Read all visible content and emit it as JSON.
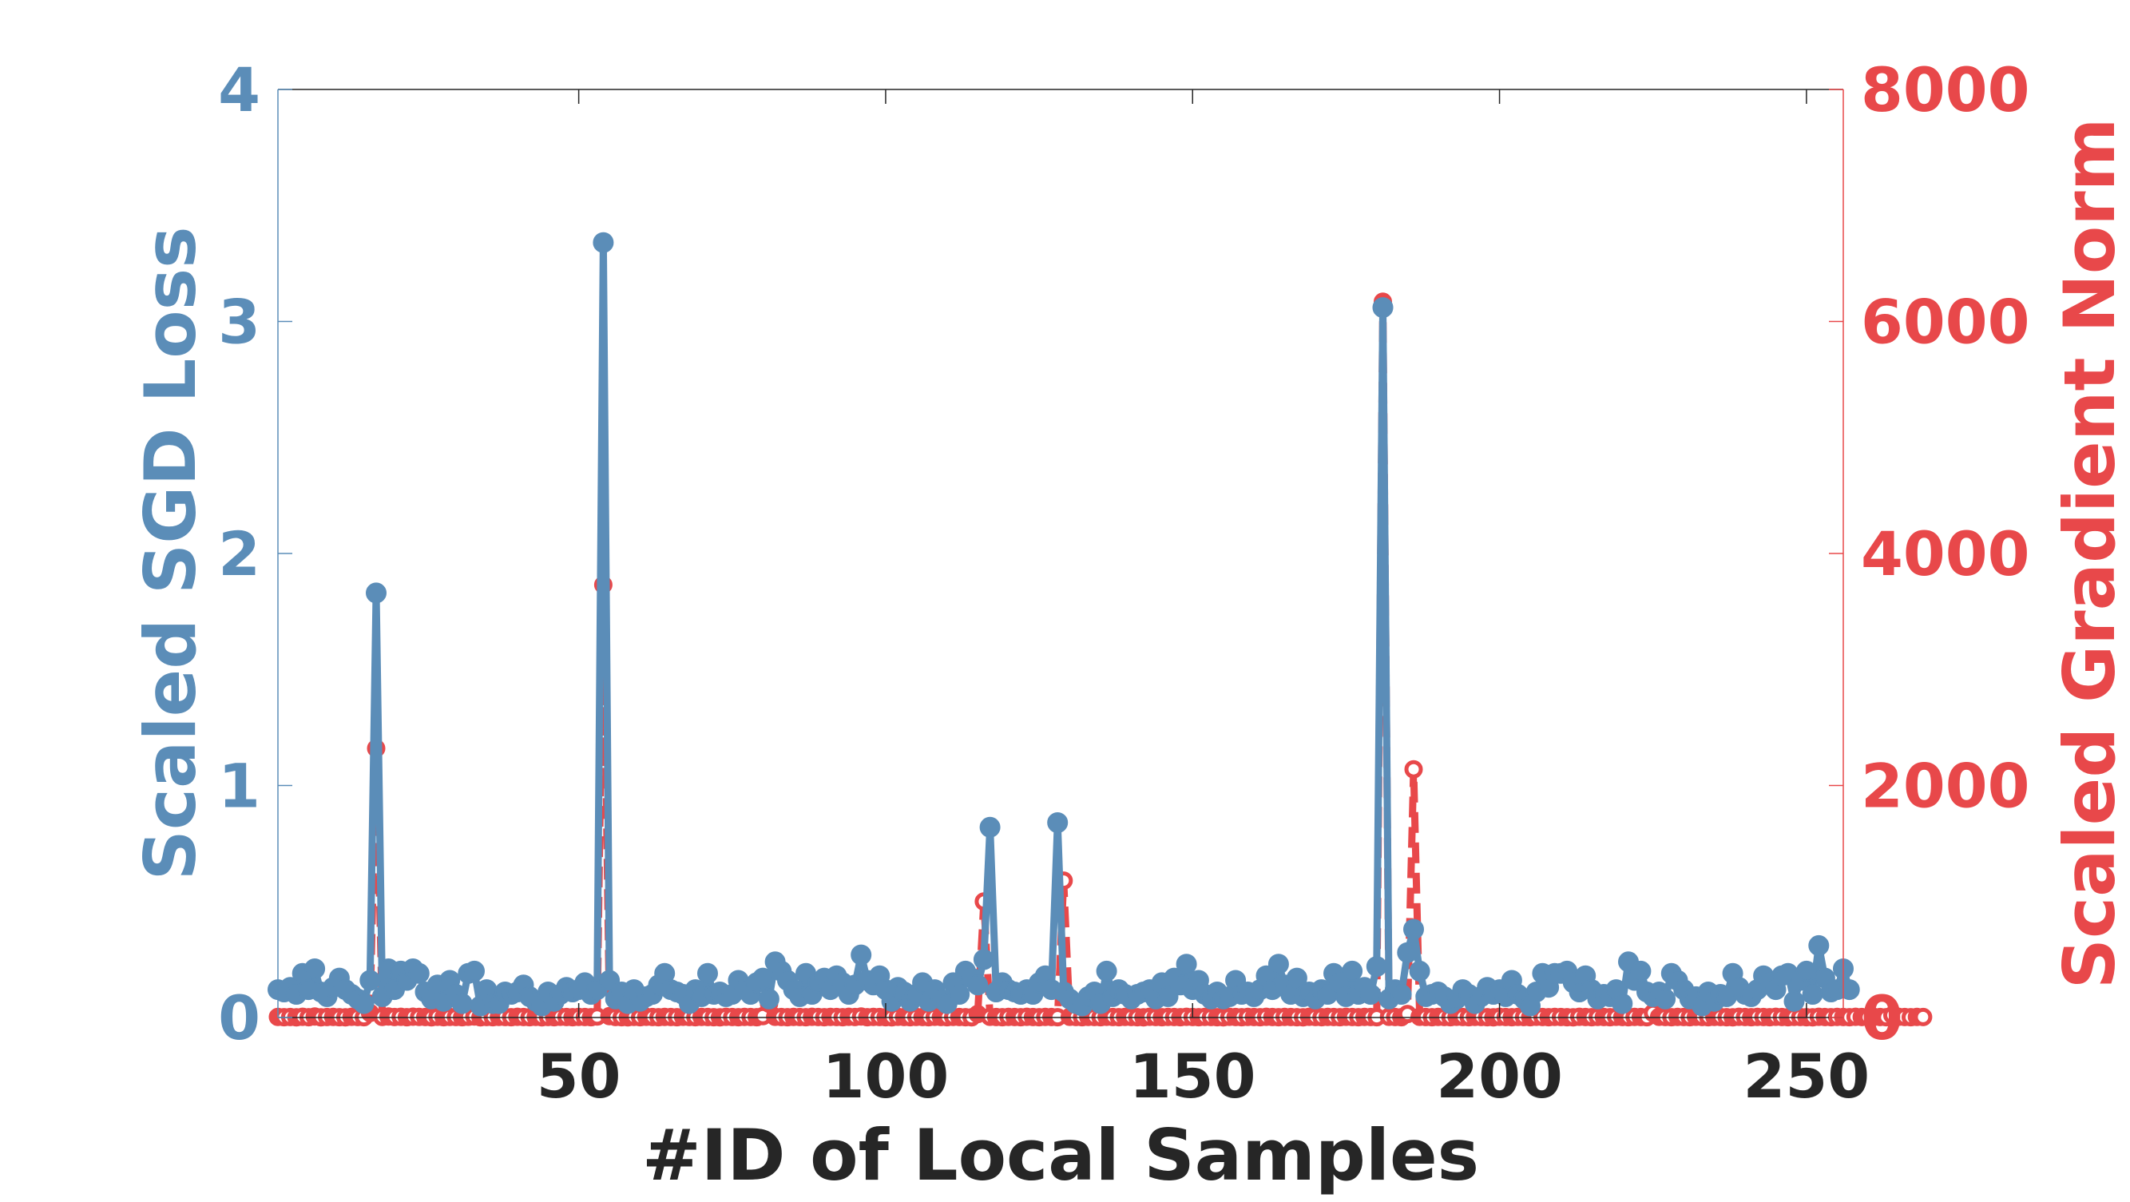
{
  "chart_data": {
    "type": "line",
    "title": "",
    "xlabel": "#ID of Local Samples",
    "ylabel_left": "Scaled SGD Loss",
    "ylabel_right": "Scaled Gradient Norm",
    "xlim": [
      1,
      256
    ],
    "ylim_left": [
      0,
      4
    ],
    "ylim_right": [
      0,
      8000
    ],
    "x_ticks": [
      50,
      100,
      150,
      200,
      250
    ],
    "y_ticks_left": [
      0,
      1,
      2,
      3,
      4
    ],
    "y_ticks_right": [
      0,
      2000,
      4000,
      6000,
      8000
    ],
    "grid": false,
    "legend": "none",
    "colors": {
      "loss": "#5b8db8",
      "grad": "#e8484a",
      "xaxis_text": "#262626"
    },
    "series": [
      {
        "axis": "left",
        "style": "solid line with filled circle markers",
        "values": [
          0.12,
          0.11,
          0.13,
          0.1,
          0.19,
          0.12,
          0.21,
          0.11,
          0.09,
          0.13,
          0.17,
          0.12,
          0.1,
          0.08,
          0.06,
          0.16,
          1.83,
          0.09,
          0.21,
          0.12,
          0.2,
          0.16,
          0.21,
          0.19,
          0.11,
          0.08,
          0.14,
          0.07,
          0.16,
          0.1,
          0.06,
          0.19,
          0.2,
          0.05,
          0.12,
          0.06,
          0.06,
          0.11,
          0.1,
          0.11,
          0.14,
          0.09,
          0.07,
          0.05,
          0.11,
          0.07,
          0.1,
          0.13,
          0.11,
          0.12,
          0.15,
          0.1,
          0.12,
          3.34,
          0.16,
          0.08,
          0.11,
          0.06,
          0.12,
          0.07,
          0.09,
          0.1,
          0.14,
          0.19,
          0.12,
          0.11,
          0.1,
          0.06,
          0.12,
          0.09,
          0.19,
          0.1,
          0.11,
          0.09,
          0.1,
          0.16,
          0.12,
          0.1,
          0.15,
          0.17,
          0.08,
          0.24,
          0.2,
          0.16,
          0.12,
          0.09,
          0.19,
          0.1,
          0.15,
          0.17,
          0.12,
          0.18,
          0.15,
          0.1,
          0.14,
          0.27,
          0.16,
          0.14,
          0.18,
          0.12,
          0.07,
          0.13,
          0.11,
          0.07,
          0.1,
          0.15,
          0.07,
          0.12,
          0.08,
          0.06,
          0.15,
          0.1,
          0.2,
          0.17,
          0.14,
          0.25,
          0.82,
          0.11,
          0.15,
          0.12,
          0.11,
          0.1,
          0.12,
          0.1,
          0.15,
          0.18,
          0.12,
          0.84,
          0.11,
          0.08,
          0.06,
          0.05,
          0.09,
          0.11,
          0.06,
          0.2,
          0.09,
          0.12,
          0.1,
          0.08,
          0.1,
          0.11,
          0.12,
          0.08,
          0.15,
          0.09,
          0.17,
          0.14,
          0.23,
          0.12,
          0.16,
          0.1,
          0.08,
          0.11,
          0.08,
          0.09,
          0.16,
          0.1,
          0.11,
          0.09,
          0.12,
          0.18,
          0.12,
          0.23,
          0.14,
          0.1,
          0.17,
          0.09,
          0.11,
          0.08,
          0.12,
          0.1,
          0.19,
          0.15,
          0.09,
          0.2,
          0.1,
          0.13,
          0.1,
          0.22,
          3.06,
          0.08,
          0.12,
          0.1,
          0.28,
          0.38,
          0.2,
          0.09,
          0.1,
          0.11,
          0.09,
          0.06,
          0.08,
          0.12,
          0.1,
          0.06,
          0.09,
          0.13,
          0.1,
          0.12,
          0.09,
          0.16,
          0.1,
          0.08,
          0.05,
          0.11,
          0.19,
          0.13,
          0.19,
          0.19,
          0.2,
          0.15,
          0.11,
          0.18,
          0.12,
          0.08,
          0.1,
          0.09,
          0.12,
          0.06,
          0.24,
          0.16,
          0.2,
          0.11,
          0.09,
          0.11,
          0.08,
          0.19,
          0.16,
          0.12,
          0.08,
          0.09,
          0.05,
          0.11,
          0.07,
          0.1,
          0.09,
          0.19,
          0.13,
          0.1,
          0.09,
          0.12,
          0.18,
          0.15,
          0.12,
          0.18,
          0.19,
          0.07,
          0.16,
          0.2,
          0.1,
          0.31,
          0.17,
          0.11,
          0.12,
          0.21,
          0.12
        ]
      },
      {
        "axis": "right",
        "style": "dashed line with circle markers",
        "values": [
          5,
          3,
          4,
          2,
          6,
          3,
          8,
          2,
          4,
          5,
          3,
          2,
          6,
          4,
          3,
          40,
          2320,
          5,
          8,
          4,
          6,
          3,
          7,
          5,
          4,
          2,
          6,
          3,
          5,
          4,
          3,
          6,
          8,
          2,
          4,
          3,
          5,
          4,
          3,
          6,
          4,
          3,
          5,
          2,
          4,
          3,
          6,
          4,
          3,
          5,
          4,
          3,
          8,
          3730,
          12,
          4,
          3,
          2,
          5,
          3,
          6,
          4,
          3,
          5,
          4,
          3,
          6,
          4,
          3,
          5,
          4,
          3,
          2,
          6,
          4,
          3,
          5,
          4,
          3,
          12,
          120,
          6,
          4,
          3,
          5,
          4,
          3,
          6,
          4,
          3,
          5,
          4,
          3,
          6,
          4,
          8,
          3,
          5,
          4,
          3,
          2,
          6,
          4,
          3,
          5,
          4,
          3,
          6,
          4,
          3,
          5,
          4,
          3,
          2,
          30,
          1000,
          6,
          4,
          3,
          5,
          4,
          3,
          6,
          4,
          3,
          5,
          4,
          3,
          1180,
          6,
          4,
          3,
          5,
          4,
          3,
          6,
          4,
          3,
          5,
          4,
          3,
          2,
          6,
          4,
          3,
          5,
          4,
          3,
          6,
          4,
          3,
          5,
          4,
          3,
          2,
          6,
          4,
          3,
          5,
          4,
          3,
          6,
          4,
          3,
          5,
          4,
          3,
          2,
          6,
          4,
          3,
          5,
          4,
          3,
          6,
          4,
          3,
          5,
          4,
          3,
          6170,
          6,
          4,
          3,
          30,
          2140,
          6,
          4,
          3,
          5,
          4,
          3,
          6,
          4,
          3,
          5,
          4,
          3,
          2,
          6,
          4,
          3,
          5,
          4,
          3,
          6,
          4,
          3,
          5,
          4,
          3,
          2,
          6,
          4,
          3,
          5,
          4,
          3,
          6,
          4,
          3,
          5,
          4,
          3,
          40,
          6,
          4,
          3,
          5,
          4,
          3,
          6,
          4,
          3,
          5,
          4,
          3,
          2,
          6,
          4,
          3,
          5,
          4,
          3,
          6,
          4,
          3,
          5,
          4,
          3,
          2,
          6,
          4,
          3,
          5,
          4,
          3,
          6,
          4,
          3,
          5,
          4,
          3,
          20,
          6,
          4,
          3,
          5,
          4
        ]
      }
    ]
  }
}
